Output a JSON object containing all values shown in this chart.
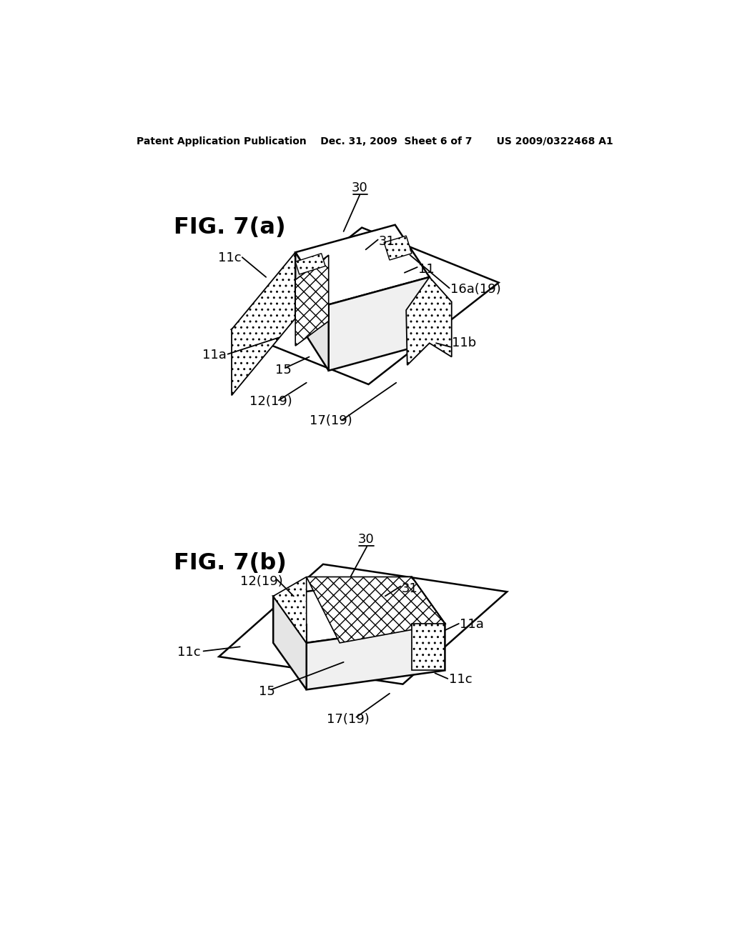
{
  "bg_color": "#ffffff",
  "header_text": "Patent Application Publication    Dec. 31, 2009  Sheet 6 of 7       US 2009/0322468 A1",
  "fig_a_label": "FIG. 7(a)",
  "fig_b_label": "FIG. 7(b)"
}
